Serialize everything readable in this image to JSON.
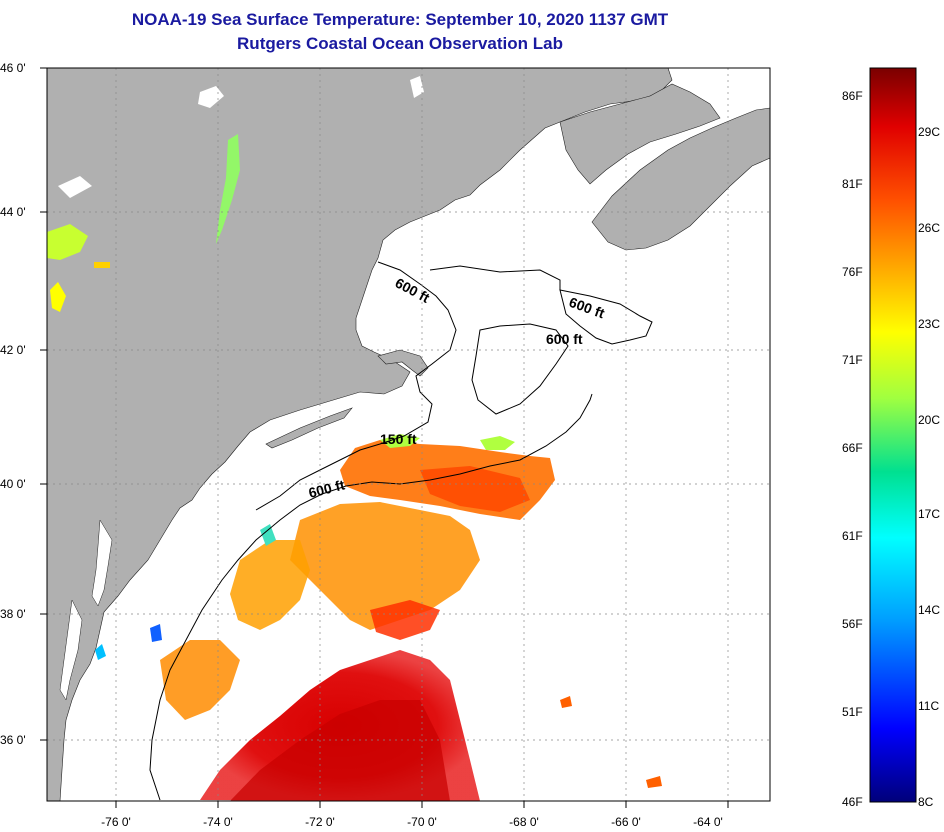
{
  "title": {
    "line1": "NOAA-19 Sea Surface Temperature:  September 10, 2020 1137 GMT",
    "line2": "Rutgers Coastal Ocean Observation Lab"
  },
  "map": {
    "lat_labels": [
      "46 0'",
      "44 0'",
      "42 0'",
      "40 0'",
      "38 0'",
      "36 0'"
    ],
    "lon_labels": [
      "-76 0'",
      "-74 0'",
      "-72 0'",
      "-70 0'",
      "-68 0'",
      "-66 0'",
      "-64 0'"
    ],
    "contour_labels": {
      "gulf_maine": "600 ft",
      "georges_east": "600 ft",
      "georges_south": "600 ft",
      "shelf_150": "150 ft",
      "shelf_600": "600 ft"
    },
    "colors": {
      "land": "#b0b0b0",
      "ocean": "#ffffff",
      "grid": "#888888"
    }
  },
  "color_scale": {
    "fahrenheit": [
      "86F",
      "81F",
      "76F",
      "71F",
      "66F",
      "61F",
      "56F",
      "51F",
      "46F"
    ],
    "celsius": [
      "29C",
      "26C",
      "23C",
      "20C",
      "17C",
      "14C",
      "11C",
      "8C"
    ],
    "colors": [
      "#00007a",
      "#0000ff",
      "#00a0ff",
      "#00ffff",
      "#00e090",
      "#a0ff40",
      "#ffff00",
      "#ffb000",
      "#ff5000",
      "#e00000",
      "#7a0000"
    ]
  }
}
